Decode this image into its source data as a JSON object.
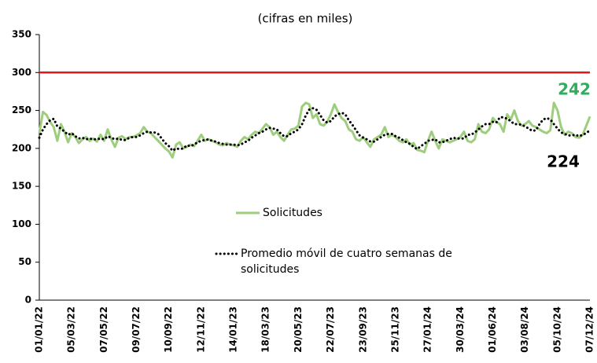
{
  "chart_data": {
    "type": "line",
    "title": "(cifras en miles)",
    "categories": [
      "01/01/22",
      null,
      null,
      null,
      null,
      null,
      null,
      null,
      null,
      "05/03/22",
      null,
      null,
      null,
      null,
      null,
      null,
      null,
      null,
      "07/05/22",
      null,
      null,
      null,
      null,
      null,
      null,
      null,
      null,
      "09/07/22",
      null,
      null,
      null,
      null,
      null,
      null,
      null,
      null,
      "10/09/22",
      null,
      null,
      null,
      null,
      null,
      null,
      null,
      null,
      "12/11/22",
      null,
      null,
      null,
      null,
      null,
      null,
      null,
      null,
      "14/01/23",
      null,
      null,
      null,
      null,
      null,
      null,
      null,
      null,
      "18/03/23",
      null,
      null,
      null,
      null,
      null,
      null,
      null,
      null,
      "20/05/23",
      null,
      null,
      null,
      null,
      null,
      null,
      null,
      null,
      "22/07/23",
      null,
      null,
      null,
      null,
      null,
      null,
      null,
      null,
      "23/09/23",
      null,
      null,
      null,
      null,
      null,
      null,
      null,
      null,
      "25/11/23",
      null,
      null,
      null,
      null,
      null,
      null,
      null,
      null,
      "27/01/24",
      null,
      null,
      null,
      null,
      null,
      null,
      null,
      null,
      "30/03/24",
      null,
      null,
      null,
      null,
      null,
      null,
      null,
      null,
      "01/06/24",
      null,
      null,
      null,
      null,
      null,
      null,
      null,
      null,
      "03/08/24",
      null,
      null,
      null,
      null,
      null,
      null,
      null,
      null,
      "05/10/24",
      null,
      null,
      null,
      null,
      null,
      null,
      null,
      null,
      "07/12/24"
    ],
    "series": [
      {
        "name": "Solicitudes",
        "color": "#9dcd7d",
        "style": "solid",
        "values": [
          220,
          248,
          244,
          235,
          228,
          210,
          232,
          222,
          208,
          220,
          215,
          207,
          212,
          215,
          210,
          213,
          209,
          218,
          210,
          225,
          212,
          202,
          214,
          216,
          212,
          215,
          215,
          217,
          220,
          228,
          222,
          220,
          215,
          210,
          205,
          200,
          196,
          188,
          205,
          208,
          200,
          202,
          205,
          203,
          210,
          218,
          210,
          212,
          210,
          208,
          205,
          204,
          207,
          205,
          204,
          202,
          210,
          215,
          212,
          218,
          222,
          220,
          226,
          232,
          228,
          218,
          222,
          215,
          210,
          218,
          225,
          226,
          230,
          255,
          260,
          258,
          240,
          245,
          232,
          230,
          235,
          245,
          258,
          248,
          240,
          236,
          225,
          222,
          212,
          210,
          215,
          208,
          202,
          212,
          215,
          218,
          228,
          215,
          218,
          215,
          210,
          208,
          212,
          205,
          207,
          198,
          197,
          195,
          210,
          222,
          210,
          200,
          212,
          210,
          208,
          210,
          212,
          215,
          222,
          210,
          208,
          212,
          232,
          222,
          220,
          225,
          240,
          235,
          232,
          222,
          245,
          238,
          250,
          236,
          230,
          232,
          236,
          230,
          228,
          225,
          222,
          220,
          224,
          260,
          250,
          228,
          218,
          222,
          220,
          215,
          214,
          218,
          230,
          242
        ]
      },
      {
        "name": "Promedio móvil de cuatro semanas de solicitudes",
        "color": "#000000",
        "style": "dotted",
        "values": [
          214,
          225,
          232,
          237,
          239,
          229,
          226,
          222,
          218,
          220,
          216,
          213,
          214,
          212,
          213,
          212,
          212,
          213,
          212,
          216,
          214,
          212,
          213,
          211,
          211,
          214,
          215,
          215,
          217,
          220,
          222,
          221,
          221,
          219,
          213,
          207,
          203,
          197,
          200,
          199,
          200,
          204,
          203,
          205,
          208,
          210,
          211,
          212,
          210,
          209,
          207,
          206,
          205,
          205,
          205,
          204,
          205,
          208,
          210,
          214,
          217,
          220,
          222,
          225,
          227,
          226,
          225,
          220,
          216,
          216,
          220,
          222,
          225,
          232,
          243,
          251,
          253,
          251,
          244,
          237,
          234,
          236,
          242,
          245,
          247,
          245,
          237,
          231,
          224,
          217,
          214,
          212,
          209,
          209,
          212,
          215,
          218,
          219,
          219,
          216,
          214,
          211,
          208,
          206,
          202,
          199,
          203,
          206,
          210,
          211,
          212,
          208,
          208,
          210,
          212,
          214,
          213,
          213,
          213,
          218,
          218,
          221,
          225,
          229,
          232,
          232,
          235,
          234,
          241,
          241,
          239,
          236,
          232,
          232,
          231,
          229,
          226,
          223,
          224,
          232,
          238,
          240,
          238,
          232,
          226,
          221,
          219,
          217,
          217,
          218,
          216,
          218,
          220,
          224
        ]
      }
    ],
    "reference_line": {
      "value": 300,
      "color": "#e8141b"
    },
    "annotations": [
      {
        "text": "242",
        "color": "#2ead5a"
      },
      {
        "text": "224",
        "color": "#000000"
      }
    ],
    "ylim": [
      0,
      350
    ],
    "yticks": [
      0,
      50,
      100,
      150,
      200,
      250,
      300,
      350
    ],
    "grid": false
  }
}
